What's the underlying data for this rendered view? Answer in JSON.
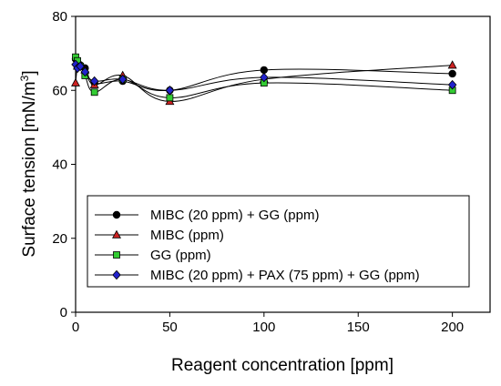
{
  "chart_data": {
    "type": "line",
    "title": "",
    "xlabel": "Reagent concentration [ppm]",
    "ylabel": "Surface tension [mN/m",
    "ylabel_sup": "3",
    "ylabel_end": "]",
    "xlim": [
      0,
      220
    ],
    "ylim": [
      0,
      80
    ],
    "xticks": [
      0,
      50,
      100,
      150,
      200
    ],
    "yticks": [
      0,
      20,
      40,
      60,
      80
    ],
    "grid": false,
    "legend_position": "lower-center",
    "series": [
      {
        "name": "MIBC (20 ppm) + GG (ppm)",
        "marker": "circle",
        "color": "#000000",
        "x": [
          0,
          1,
          2.5,
          5,
          10,
          25,
          50,
          100,
          200
        ],
        "y": [
          68.5,
          67.5,
          66.8,
          66.0,
          62.0,
          62.5,
          60.0,
          65.5,
          64.5
        ]
      },
      {
        "name": "MIBC (ppm)",
        "marker": "triangle",
        "color": "#cc2222",
        "x": [
          0,
          1,
          2.5,
          5,
          10,
          25,
          50,
          100,
          200
        ],
        "y": [
          62.0,
          66.5,
          67.0,
          65.5,
          61.5,
          64.0,
          57.0,
          63.0,
          66.8
        ]
      },
      {
        "name": "GG (ppm)",
        "marker": "square",
        "color": "#33cc33",
        "x": [
          0,
          1,
          2.5,
          5,
          10,
          25,
          50,
          100,
          200
        ],
        "y": [
          69.0,
          68.0,
          66.5,
          64.0,
          59.5,
          63.0,
          58.0,
          62.0,
          60.0
        ]
      },
      {
        "name": "MIBC (20 ppm) + PAX (75 ppm) + GG (ppm)",
        "marker": "diamond",
        "color": "#2222cc",
        "x": [
          0,
          1,
          2.5,
          5,
          10,
          25,
          50,
          100,
          200
        ],
        "y": [
          67.0,
          66.0,
          66.5,
          65.0,
          62.5,
          63.0,
          60.0,
          63.5,
          61.5
        ]
      }
    ]
  }
}
